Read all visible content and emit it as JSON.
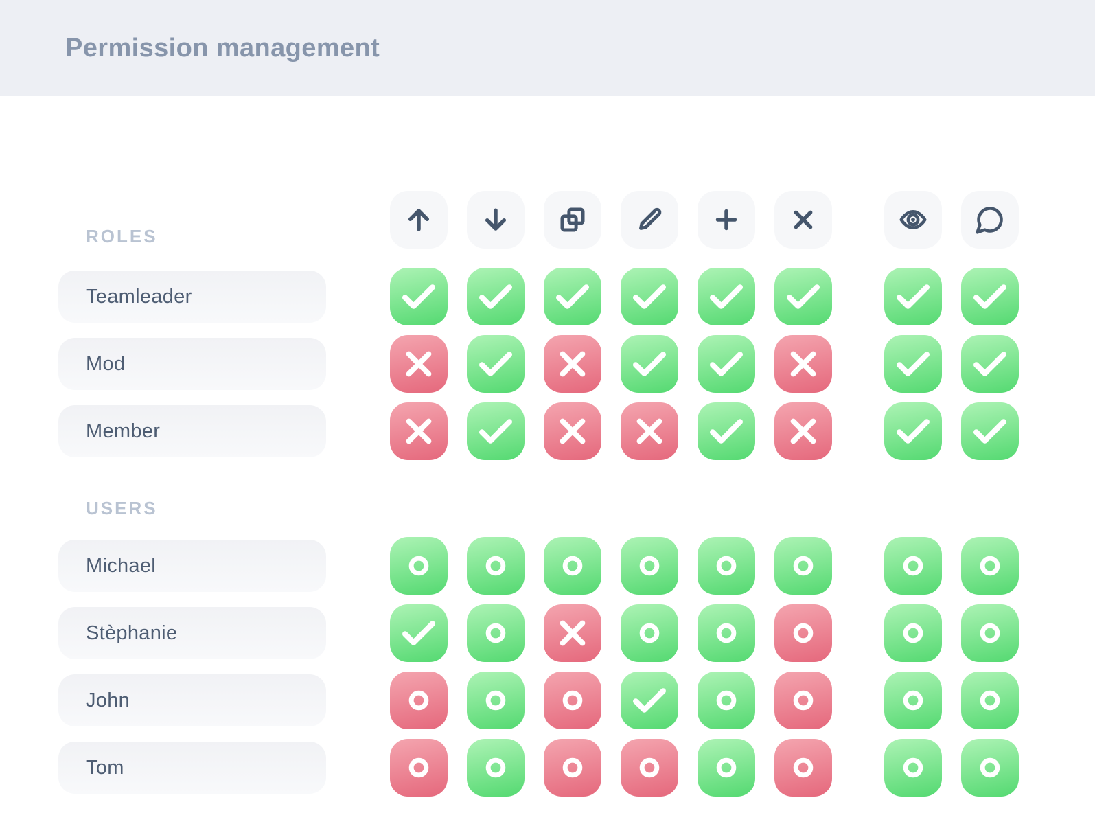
{
  "header": {
    "title": "Permission management"
  },
  "columns": {
    "actions": [
      "move-up",
      "move-down",
      "duplicate",
      "edit",
      "add",
      "delete"
    ],
    "meta": [
      "view",
      "comment"
    ]
  },
  "sections": [
    {
      "label": "ROLES",
      "kind": "role",
      "rows": [
        {
          "name": "Teamleader",
          "cells": [
            "check-green",
            "check-green",
            "check-green",
            "check-green",
            "check-green",
            "check-green",
            "check-green",
            "check-green"
          ]
        },
        {
          "name": "Mod",
          "cells": [
            "cross-red",
            "check-green",
            "cross-red",
            "check-green",
            "check-green",
            "cross-red",
            "check-green",
            "check-green"
          ]
        },
        {
          "name": "Member",
          "cells": [
            "cross-red",
            "check-green",
            "cross-red",
            "cross-red",
            "check-green",
            "cross-red",
            "check-green",
            "check-green"
          ]
        }
      ]
    },
    {
      "label": "USERS",
      "kind": "user",
      "rows": [
        {
          "name": "Michael",
          "cells": [
            "circle-green",
            "circle-green",
            "circle-green",
            "circle-green",
            "circle-green",
            "circle-green",
            "circle-green",
            "circle-green"
          ]
        },
        {
          "name": "Stèphanie",
          "cells": [
            "check-green",
            "circle-green",
            "cross-red",
            "circle-green",
            "circle-green",
            "circle-red",
            "circle-green",
            "circle-green"
          ]
        },
        {
          "name": "John",
          "cells": [
            "circle-red",
            "circle-green",
            "circle-red",
            "check-green",
            "circle-green",
            "circle-red",
            "circle-green",
            "circle-green"
          ]
        },
        {
          "name": "Tom",
          "cells": [
            "circle-red",
            "circle-green",
            "circle-red",
            "circle-red",
            "circle-green",
            "circle-red",
            "circle-green",
            "circle-green"
          ]
        }
      ]
    }
  ],
  "colors": {
    "header_bg": "#edeff4",
    "title": "#8795ab",
    "label": "#b9c3d2",
    "icon": "#45566c",
    "green_top": "#adf3b5",
    "green_bottom": "#54d971",
    "red_top": "#f4a5af",
    "red_bottom": "#e5687c",
    "pill_top": "#f1f2f5",
    "pill_bottom": "#f8f9fb",
    "pill_text": "#4e5d73",
    "chip_bg": "#f6f7f9"
  }
}
